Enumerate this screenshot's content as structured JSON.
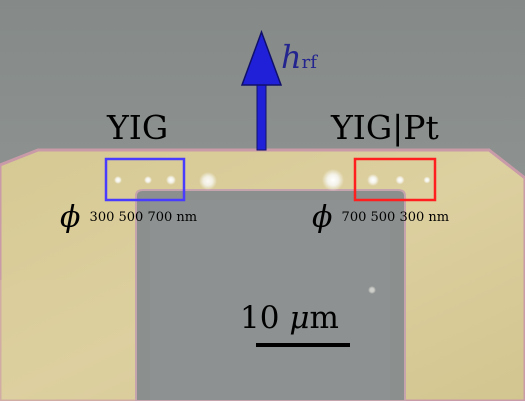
{
  "labels": {
    "yig": "YIG",
    "yig_pt": "YIG|Pt",
    "phi": "ϕ",
    "left_diameters": "300 500 700 nm",
    "right_diameters": "700 500 300 nm",
    "field_symbol": "h",
    "field_subscript": "rf",
    "scale_value": "10",
    "scale_unit_mu": "μ",
    "scale_unit_m": "m"
  },
  "colors": {
    "arrow": "#1f20d8",
    "arrow_label": "#24248f",
    "box_left": "#4a3cff",
    "box_right": "#ff1f1f",
    "substrate": "#8c918f",
    "gold": "#d8c995",
    "waveguide_slot": "#8c908f"
  }
}
